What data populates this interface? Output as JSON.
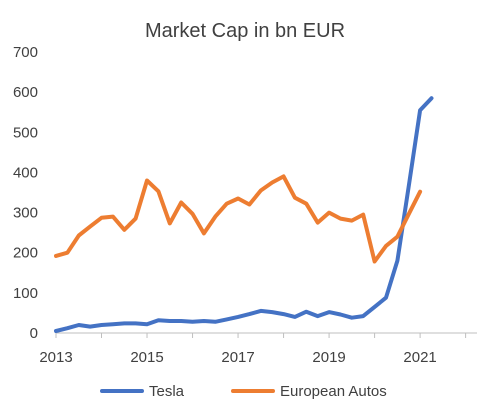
{
  "chart_data": {
    "type": "line",
    "title": "Market Cap in bn EUR",
    "xlabel": "",
    "ylabel": "",
    "ylim": [
      0,
      700
    ],
    "xlim": [
      2013,
      2022.25
    ],
    "x_ticks": [
      2013,
      2015,
      2017,
      2019,
      2021
    ],
    "y_ticks": [
      0,
      100,
      200,
      300,
      400,
      500,
      600,
      700
    ],
    "grid": false,
    "legend_position": "bottom",
    "series": [
      {
        "name": "Tesla",
        "color": "#4472C4",
        "points": [
          [
            2013.0,
            5
          ],
          [
            2013.25,
            12
          ],
          [
            2013.5,
            20
          ],
          [
            2013.75,
            16
          ],
          [
            2014.0,
            20
          ],
          [
            2014.25,
            22
          ],
          [
            2014.5,
            24
          ],
          [
            2014.75,
            24
          ],
          [
            2015.0,
            22
          ],
          [
            2015.25,
            32
          ],
          [
            2015.5,
            30
          ],
          [
            2015.75,
            30
          ],
          [
            2016.0,
            28
          ],
          [
            2016.25,
            30
          ],
          [
            2016.5,
            28
          ],
          [
            2016.75,
            34
          ],
          [
            2017.0,
            40
          ],
          [
            2017.25,
            47
          ],
          [
            2017.5,
            55
          ],
          [
            2017.75,
            52
          ],
          [
            2018.0,
            47
          ],
          [
            2018.25,
            40
          ],
          [
            2018.5,
            53
          ],
          [
            2018.75,
            42
          ],
          [
            2019.0,
            52
          ],
          [
            2019.25,
            46
          ],
          [
            2019.5,
            38
          ],
          [
            2019.75,
            42
          ],
          [
            2020.0,
            65
          ],
          [
            2020.25,
            88
          ],
          [
            2020.5,
            180
          ],
          [
            2020.75,
            365
          ],
          [
            2021.0,
            555
          ],
          [
            2021.25,
            585
          ]
        ]
      },
      {
        "name": "European Autos",
        "color": "#ED7D31",
        "points": [
          [
            2013.0,
            192
          ],
          [
            2013.25,
            200
          ],
          [
            2013.5,
            243
          ],
          [
            2013.75,
            265
          ],
          [
            2014.0,
            287
          ],
          [
            2014.25,
            290
          ],
          [
            2014.5,
            257
          ],
          [
            2014.75,
            285
          ],
          [
            2015.0,
            380
          ],
          [
            2015.25,
            353
          ],
          [
            2015.5,
            273
          ],
          [
            2015.75,
            325
          ],
          [
            2016.0,
            297
          ],
          [
            2016.25,
            248
          ],
          [
            2016.5,
            290
          ],
          [
            2016.75,
            322
          ],
          [
            2017.0,
            335
          ],
          [
            2017.25,
            320
          ],
          [
            2017.5,
            355
          ],
          [
            2017.75,
            375
          ],
          [
            2018.0,
            390
          ],
          [
            2018.25,
            337
          ],
          [
            2018.5,
            322
          ],
          [
            2018.75,
            275
          ],
          [
            2019.0,
            300
          ],
          [
            2019.25,
            285
          ],
          [
            2019.5,
            280
          ],
          [
            2019.75,
            295
          ],
          [
            2020.0,
            178
          ],
          [
            2020.25,
            217
          ],
          [
            2020.5,
            240
          ],
          [
            2020.75,
            296
          ],
          [
            2021.0,
            352
          ]
        ]
      }
    ]
  }
}
